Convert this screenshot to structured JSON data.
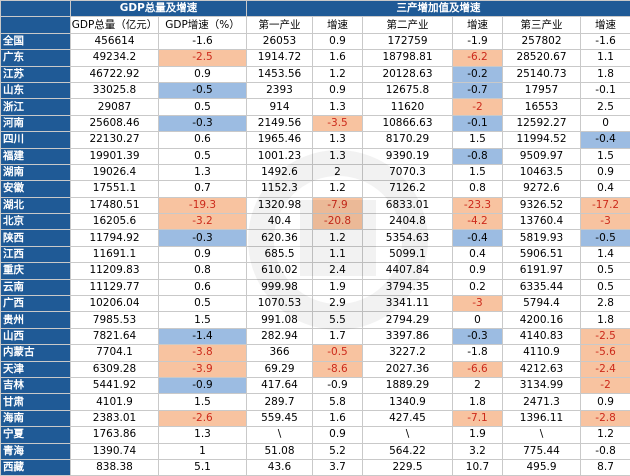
{
  "headers": {
    "group_gdp": "GDP总量及增速",
    "group_industry": "三产增加值及增速",
    "cols": [
      "GDP总量（亿元）",
      "GDP增速（%）",
      "第一产业",
      "增速",
      "第二产业",
      "增速",
      "第三产业",
      "增速"
    ]
  },
  "rows": [
    {
      "prov": "全国",
      "vals": [
        "456614",
        "-1.6",
        "26053",
        "0.9",
        "172759",
        "-1.9",
        "257802",
        "-1.6"
      ],
      "marks": [
        "",
        "",
        "",
        "",
        "",
        "",
        "",
        ""
      ]
    },
    {
      "prov": "广东",
      "vals": [
        "49234.2",
        "-2.5",
        "1914.72",
        "1.6",
        "18798.81",
        "-6.2",
        "28520.67",
        "1.1"
      ],
      "marks": [
        "",
        "o",
        "",
        "",
        "",
        "o",
        "",
        ""
      ]
    },
    {
      "prov": "江苏",
      "vals": [
        "46722.92",
        "0.9",
        "1453.56",
        "1.2",
        "20128.63",
        "-0.2",
        "25140.73",
        "1.8"
      ],
      "marks": [
        "",
        "",
        "",
        "",
        "",
        "b",
        "",
        ""
      ]
    },
    {
      "prov": "山东",
      "vals": [
        "33025.8",
        "-0.5",
        "2393",
        "0.9",
        "12675.8",
        "-0.7",
        "17957",
        "-0.1"
      ],
      "marks": [
        "",
        "b",
        "",
        "",
        "",
        "b",
        "",
        ""
      ]
    },
    {
      "prov": "浙江",
      "vals": [
        "29087",
        "0.5",
        "914",
        "1.3",
        "11620",
        "-2",
        "16553",
        "2.5"
      ],
      "marks": [
        "",
        "",
        "",
        "",
        "",
        "o",
        "",
        ""
      ]
    },
    {
      "prov": "河南",
      "vals": [
        "25608.46",
        "-0.3",
        "2149.56",
        "-3.5",
        "10866.63",
        "-0.1",
        "12592.27",
        "0"
      ],
      "marks": [
        "",
        "b",
        "",
        "o",
        "",
        "b",
        "",
        ""
      ]
    },
    {
      "prov": "四川",
      "vals": [
        "22130.27",
        "0.6",
        "1965.46",
        "1.3",
        "8170.29",
        "1.5",
        "11994.52",
        "-0.4"
      ],
      "marks": [
        "",
        "",
        "",
        "",
        "",
        "",
        "",
        "b"
      ]
    },
    {
      "prov": "福建",
      "vals": [
        "19901.39",
        "0.5",
        "1001.23",
        "1.3",
        "9390.19",
        "-0.8",
        "9509.97",
        "1.5"
      ],
      "marks": [
        "",
        "",
        "",
        "",
        "",
        "b",
        "",
        ""
      ]
    },
    {
      "prov": "湖南",
      "vals": [
        "19026.4",
        "1.3",
        "1492.6",
        "2",
        "7070.3",
        "1.5",
        "10463.5",
        "0.9"
      ],
      "marks": [
        "",
        "",
        "",
        "",
        "",
        "",
        "",
        ""
      ]
    },
    {
      "prov": "安徽",
      "vals": [
        "17551.1",
        "0.7",
        "1152.3",
        "1.2",
        "7126.2",
        "0.8",
        "9272.6",
        "0.4"
      ],
      "marks": [
        "",
        "",
        "",
        "",
        "",
        "",
        "",
        ""
      ]
    },
    {
      "prov": "湖北",
      "vals": [
        "17480.51",
        "-19.3",
        "1320.98",
        "-7.9",
        "6833.01",
        "-23.3",
        "9326.52",
        "-17.2"
      ],
      "marks": [
        "",
        "o",
        "",
        "o",
        "",
        "o",
        "",
        "o"
      ]
    },
    {
      "prov": "北京",
      "vals": [
        "16205.6",
        "-3.2",
        "40.4",
        "-20.8",
        "2404.8",
        "-4.2",
        "13760.4",
        "-3"
      ],
      "marks": [
        "",
        "o",
        "",
        "o",
        "",
        "o",
        "",
        "o"
      ]
    },
    {
      "prov": "陕西",
      "vals": [
        "11794.92",
        "-0.3",
        "620.36",
        "1.2",
        "5354.63",
        "-0.4",
        "5819.93",
        "-0.5"
      ],
      "marks": [
        "",
        "b",
        "",
        "",
        "",
        "b",
        "",
        "b"
      ]
    },
    {
      "prov": "江西",
      "vals": [
        "11691.1",
        "0.9",
        "685.5",
        "1.1",
        "5099.1",
        "0.4",
        "5906.51",
        "1.4"
      ],
      "marks": [
        "",
        "",
        "",
        "",
        "",
        "",
        "",
        ""
      ]
    },
    {
      "prov": "重庆",
      "vals": [
        "11209.83",
        "0.8",
        "610.02",
        "2.4",
        "4407.84",
        "0.9",
        "6191.97",
        "0.5"
      ],
      "marks": [
        "",
        "",
        "",
        "",
        "",
        "",
        "",
        ""
      ]
    },
    {
      "prov": "云南",
      "vals": [
        "11129.77",
        "0.6",
        "999.98",
        "1.9",
        "3794.35",
        "0.2",
        "6335.44",
        "0.5"
      ],
      "marks": [
        "",
        "",
        "",
        "",
        "",
        "",
        "",
        ""
      ]
    },
    {
      "prov": "广西",
      "vals": [
        "10206.04",
        "0.5",
        "1070.53",
        "2.9",
        "3341.11",
        "-3",
        "5794.4",
        "2.8"
      ],
      "marks": [
        "",
        "",
        "",
        "",
        "",
        "o",
        "",
        ""
      ]
    },
    {
      "prov": "贵州",
      "vals": [
        "7985.53",
        "1.5",
        "991.08",
        "5.5",
        "2794.29",
        "0",
        "4200.16",
        "1.8"
      ],
      "marks": [
        "",
        "",
        "",
        "",
        "",
        "",
        "",
        ""
      ]
    },
    {
      "prov": "山西",
      "vals": [
        "7821.64",
        "-1.4",
        "282.94",
        "1.7",
        "3397.86",
        "-0.3",
        "4140.83",
        "-2.5"
      ],
      "marks": [
        "",
        "b",
        "",
        "",
        "",
        "b",
        "",
        "o"
      ]
    },
    {
      "prov": "内蒙古",
      "vals": [
        "7704.1",
        "-3.8",
        "366",
        "-0.5",
        "3227.2",
        "-1.8",
        "4110.9",
        "-5.6"
      ],
      "marks": [
        "",
        "o",
        "",
        "o",
        "",
        "",
        "",
        "o"
      ]
    },
    {
      "prov": "天津",
      "vals": [
        "6309.28",
        "-3.9",
        "69.29",
        "-8.6",
        "2027.36",
        "-6.6",
        "4212.63",
        "-2.4"
      ],
      "marks": [
        "",
        "o",
        "",
        "o",
        "",
        "o",
        "",
        "o"
      ]
    },
    {
      "prov": "吉林",
      "vals": [
        "5441.92",
        "-0.9",
        "417.64",
        "-0.9",
        "1889.29",
        "2",
        "3134.99",
        "-2"
      ],
      "marks": [
        "",
        "b",
        "",
        "",
        "",
        "",
        "",
        "o"
      ]
    },
    {
      "prov": "甘肃",
      "vals": [
        "4101.9",
        "1.5",
        "289.7",
        "5.8",
        "1340.9",
        "1.8",
        "2471.3",
        "0.9"
      ],
      "marks": [
        "",
        "",
        "",
        "",
        "",
        "",
        "",
        ""
      ]
    },
    {
      "prov": "海南",
      "vals": [
        "2383.01",
        "-2.6",
        "559.45",
        "1.6",
        "427.45",
        "-7.1",
        "1396.11",
        "-2.8"
      ],
      "marks": [
        "",
        "o",
        "",
        "",
        "",
        "o",
        "",
        "o"
      ]
    },
    {
      "prov": "宁夏",
      "vals": [
        "1763.86",
        "1.3",
        "\\",
        "0.9",
        "\\",
        "1.9",
        "\\",
        "1.2"
      ],
      "marks": [
        "",
        "",
        "",
        "",
        "",
        "",
        "",
        ""
      ]
    },
    {
      "prov": "青海",
      "vals": [
        "1390.74",
        "1",
        "51.08",
        "5.2",
        "564.22",
        "3.2",
        "775.44",
        "-0.8"
      ],
      "marks": [
        "",
        "",
        "",
        "",
        "",
        "",
        "",
        ""
      ]
    },
    {
      "prov": "西藏",
      "vals": [
        "838.38",
        "5.1",
        "43.6",
        "3.7",
        "229.5",
        "10.7",
        "495.9",
        "8.7"
      ],
      "marks": [
        "",
        "",
        "",
        "",
        "",
        "",
        "",
        ""
      ]
    }
  ]
}
